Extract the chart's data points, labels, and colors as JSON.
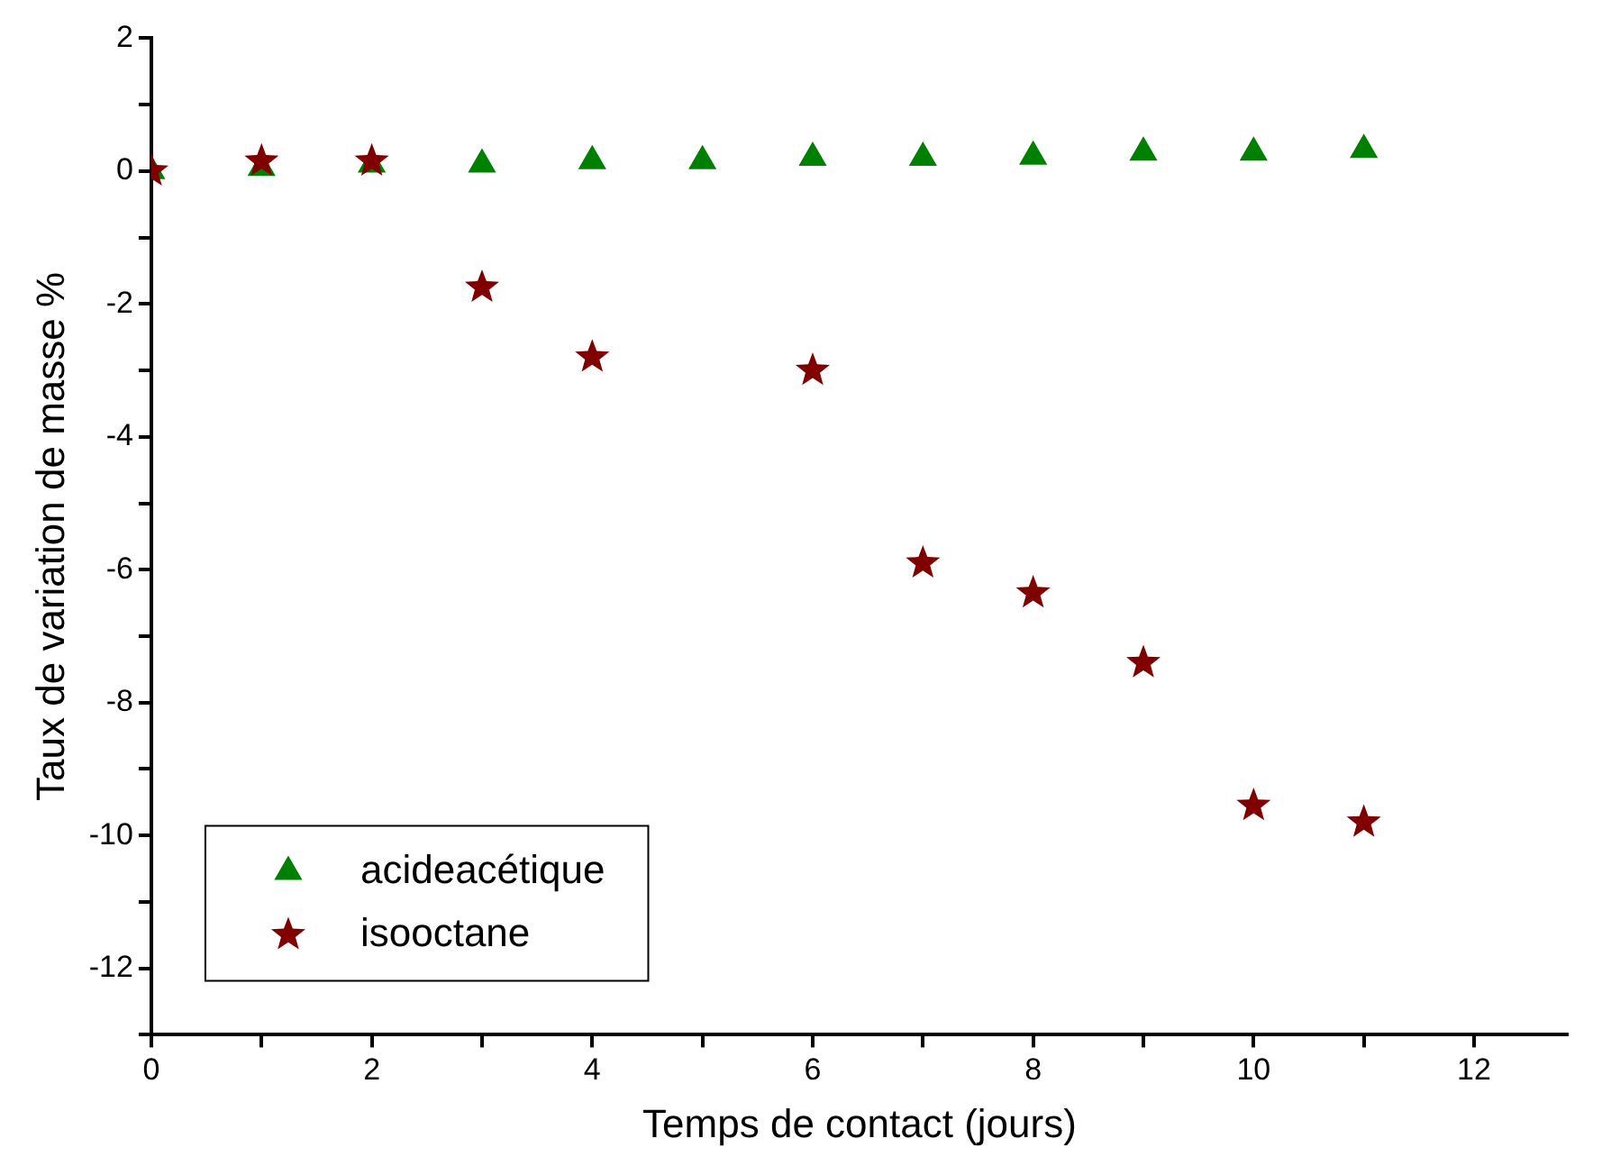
{
  "chart_data": {
    "type": "scatter",
    "xlabel": "Temps de contact (jours)",
    "ylabel": "Taux de variation de masse %",
    "series": [
      {
        "name": "acideacétique",
        "color": "#008000",
        "marker": "triangle",
        "x": [
          0,
          1,
          2,
          3,
          4,
          5,
          6,
          7,
          8,
          9,
          10,
          11
        ],
        "values": [
          0,
          0.05,
          0.1,
          0.1,
          0.15,
          0.15,
          0.2,
          0.2,
          0.22,
          0.28,
          0.28,
          0.32
        ]
      },
      {
        "name": "isooctane",
        "color": "#800000",
        "marker": "star",
        "x": [
          0,
          1,
          2,
          3,
          4,
          6,
          7,
          8,
          9,
          10,
          11
        ],
        "values": [
          0,
          0.15,
          0.15,
          -1.75,
          -2.8,
          -3,
          -5.9,
          -6.35,
          -7.4,
          -9.55,
          -9.8
        ]
      }
    ],
    "xlim": [
      0,
      12.85
    ],
    "xticks": [
      0,
      {
        "value": 1,
        "label": null
      },
      2,
      {
        "value": 3,
        "label": null
      },
      4,
      {
        "value": 5,
        "label": null
      },
      6,
      {
        "value": 7,
        "label": null
      },
      8,
      {
        "value": 9,
        "label": null
      },
      10,
      {
        "value": 11,
        "label": null
      },
      12
    ],
    "ylim": [
      -13,
      2
    ],
    "yticks": [
      {
        "value": -13,
        "label": null
      },
      -12,
      {
        "value": -11,
        "label": null
      },
      -10,
      {
        "value": -9,
        "label": null
      },
      -8,
      {
        "value": -7,
        "label": null
      },
      -6,
      {
        "value": -5,
        "label": null
      },
      -4,
      {
        "value": -3,
        "label": null
      },
      -2,
      {
        "value": -1,
        "label": null
      },
      0,
      {
        "value": 1,
        "label": null
      },
      2
    ],
    "grid": false,
    "legend": "bottom left"
  }
}
